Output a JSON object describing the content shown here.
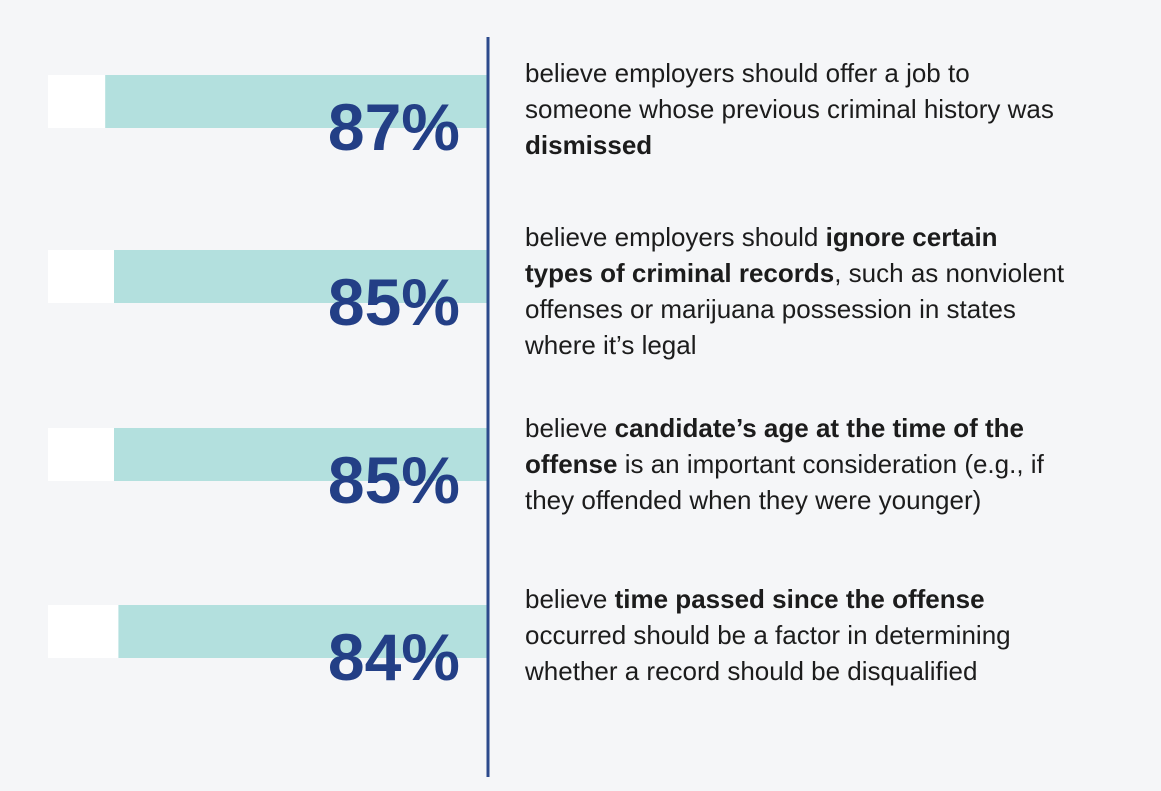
{
  "chart_data": {
    "type": "bar",
    "values": [
      87,
      85,
      85,
      84
    ],
    "value_labels": [
      "87%",
      "85%",
      "85%",
      "84%"
    ],
    "xlim": [
      100,
      0
    ],
    "color": "#b3e0de",
    "track_color": "#ffffff",
    "label_color": "#233f86",
    "axis_color": "#2c4a8c",
    "descriptions": [
      [
        [
          {
            "text": "believe employers should offer a job to",
            "bold": false
          }
        ],
        [
          {
            "text": "someone whose previous criminal history was",
            "bold": false
          }
        ],
        [
          {
            "text": "dismissed",
            "bold": true
          }
        ]
      ],
      [
        [
          {
            "text": "believe employers should ",
            "bold": false
          },
          {
            "text": "ignore certain",
            "bold": true
          }
        ],
        [
          {
            "text": "types of criminal records",
            "bold": true
          },
          {
            "text": ", such as nonviolent",
            "bold": false
          }
        ],
        [
          {
            "text": "offenses or marijuana possession in states",
            "bold": false
          }
        ],
        [
          {
            "text": "where it’s legal",
            "bold": false
          }
        ]
      ],
      [
        [
          {
            "text": "believe ",
            "bold": false
          },
          {
            "text": "candidate’s age at the time of the",
            "bold": true
          }
        ],
        [
          {
            "text": "offense",
            "bold": true
          },
          {
            "text": " is an important consideration (e.g., if",
            "bold": false
          }
        ],
        [
          {
            "text": "they offended when they were younger)",
            "bold": false
          }
        ]
      ],
      [
        [
          {
            "text": "believe ",
            "bold": false
          },
          {
            "text": "time passed since the offense",
            "bold": true
          }
        ],
        [
          {
            "text": "occurred should be a factor in determining",
            "bold": false
          }
        ],
        [
          {
            "text": "whether a record should be disqualified",
            "bold": false
          }
        ]
      ]
    ]
  }
}
